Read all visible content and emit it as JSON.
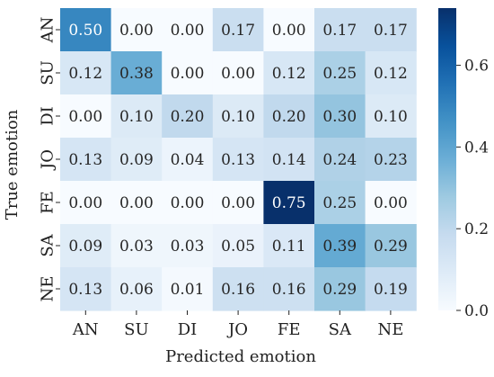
{
  "chart_data": {
    "type": "heatmap",
    "title": "",
    "xlabel": "Predicted emotion",
    "ylabel": "True emotion",
    "x_categories": [
      "AN",
      "SU",
      "DI",
      "JO",
      "FE",
      "SA",
      "NE"
    ],
    "y_categories": [
      "AN",
      "SU",
      "DI",
      "JO",
      "FE",
      "SA",
      "NE"
    ],
    "values": [
      [
        0.5,
        0.0,
        0.0,
        0.17,
        0.0,
        0.17,
        0.17
      ],
      [
        0.12,
        0.38,
        0.0,
        0.0,
        0.12,
        0.25,
        0.12
      ],
      [
        0.0,
        0.1,
        0.2,
        0.1,
        0.2,
        0.3,
        0.1
      ],
      [
        0.13,
        0.09,
        0.04,
        0.13,
        0.14,
        0.24,
        0.23
      ],
      [
        0.0,
        0.0,
        0.0,
        0.0,
        0.75,
        0.25,
        0.0
      ],
      [
        0.09,
        0.03,
        0.03,
        0.05,
        0.11,
        0.39,
        0.29
      ],
      [
        0.13,
        0.06,
        0.01,
        0.16,
        0.16,
        0.29,
        0.19
      ]
    ],
    "value_labels": [
      [
        "0.50",
        "0.00",
        "0.00",
        "0.17",
        "0.00",
        "0.17",
        "0.17"
      ],
      [
        "0.12",
        "0.38",
        "0.00",
        "0.00",
        "0.12",
        "0.25",
        "0.12"
      ],
      [
        "0.00",
        "0.10",
        "0.20",
        "0.10",
        "0.20",
        "0.30",
        "0.10"
      ],
      [
        "0.13",
        "0.09",
        "0.04",
        "0.13",
        "0.14",
        "0.24",
        "0.23"
      ],
      [
        "0.00",
        "0.00",
        "0.00",
        "0.00",
        "0.75",
        "0.25",
        "0.00"
      ],
      [
        "0.09",
        "0.03",
        "0.03",
        "0.05",
        "0.11",
        "0.39",
        "0.29"
      ],
      [
        "0.13",
        "0.06",
        "0.01",
        "0.16",
        "0.16",
        "0.29",
        "0.19"
      ]
    ],
    "colormap": "Blues",
    "vmin": 0.0,
    "vmax": 0.75,
    "colorbar": {
      "ticks": [
        0.0,
        0.2,
        0.4,
        0.6
      ],
      "tick_labels": [
        "0.0",
        "0.2",
        "0.4",
        "0.6"
      ]
    },
    "grid": false,
    "legend": "colorbar-right"
  }
}
